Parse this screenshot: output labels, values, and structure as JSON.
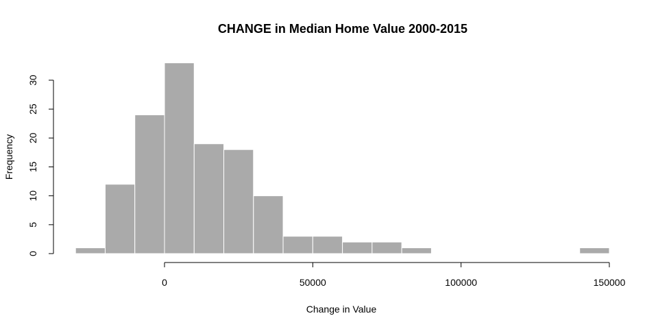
{
  "chart_data": {
    "type": "bar",
    "title": "CHANGE in Median Home Value 2000-2015",
    "xlabel": "Change in Value",
    "ylabel": "Frequency",
    "bar_color": "#AAAAAA",
    "bar_border_color": "#FFFFFF",
    "xlim": [
      -30000,
      150000
    ],
    "ylim": [
      0,
      33
    ],
    "x_ticks": [
      0,
      50000,
      100000,
      150000
    ],
    "y_ticks": [
      0,
      5,
      10,
      15,
      20,
      25,
      30
    ],
    "bins": [
      {
        "start": -30000,
        "end": -20000,
        "count": 1
      },
      {
        "start": -20000,
        "end": -10000,
        "count": 12
      },
      {
        "start": -10000,
        "end": 0,
        "count": 24
      },
      {
        "start": 0,
        "end": 10000,
        "count": 33
      },
      {
        "start": 10000,
        "end": 20000,
        "count": 19
      },
      {
        "start": 20000,
        "end": 30000,
        "count": 18
      },
      {
        "start": 30000,
        "end": 40000,
        "count": 10
      },
      {
        "start": 40000,
        "end": 50000,
        "count": 3
      },
      {
        "start": 50000,
        "end": 60000,
        "count": 3
      },
      {
        "start": 60000,
        "end": 70000,
        "count": 2
      },
      {
        "start": 70000,
        "end": 80000,
        "count": 2
      },
      {
        "start": 80000,
        "end": 90000,
        "count": 1
      },
      {
        "start": 90000,
        "end": 100000,
        "count": 0
      },
      {
        "start": 100000,
        "end": 110000,
        "count": 0
      },
      {
        "start": 110000,
        "end": 120000,
        "count": 0
      },
      {
        "start": 120000,
        "end": 130000,
        "count": 0
      },
      {
        "start": 130000,
        "end": 140000,
        "count": 0
      },
      {
        "start": 140000,
        "end": 150000,
        "count": 1
      }
    ],
    "grid": false,
    "legend": "none"
  }
}
